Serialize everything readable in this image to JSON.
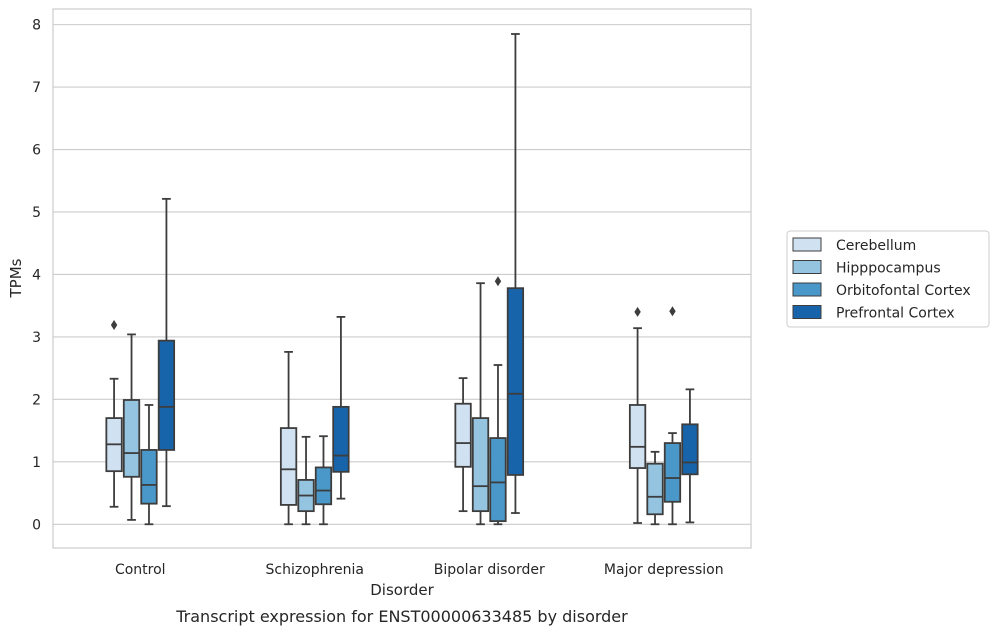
{
  "chart_data": {
    "type": "box",
    "xlabel": "Disorder",
    "ylabel": "TPMs",
    "caption": "Transcript expression for ENST00000633485 by disorder",
    "ylim": [
      -0.38,
      8.25
    ],
    "yticks": [
      0,
      1,
      2,
      3,
      4,
      5,
      6,
      7,
      8
    ],
    "grid": "horizontal",
    "legend_position": "right",
    "categories": [
      "Control",
      "Schizophrenia",
      "Bipolar disorder",
      "Major depression"
    ],
    "series": [
      {
        "name": "Cerebellum",
        "color": "#d0e1f2",
        "boxes": [
          {
            "whislo": 0.28,
            "q1": 0.85,
            "med": 1.28,
            "q3": 1.7,
            "whishi": 2.33,
            "fliers": [
              3.19
            ]
          },
          {
            "whislo": 0.0,
            "q1": 0.31,
            "med": 0.88,
            "q3": 1.54,
            "whishi": 2.76,
            "fliers": []
          },
          {
            "whislo": 0.21,
            "q1": 0.92,
            "med": 1.3,
            "q3": 1.93,
            "whishi": 2.34,
            "fliers": []
          },
          {
            "whislo": 0.02,
            "q1": 0.9,
            "med": 1.24,
            "q3": 1.91,
            "whishi": 3.14,
            "fliers": [
              3.4
            ]
          }
        ]
      },
      {
        "name": "Hipppocampus",
        "color": "#94c4df",
        "boxes": [
          {
            "whislo": 0.07,
            "q1": 0.76,
            "med": 1.14,
            "q3": 1.99,
            "whishi": 3.04,
            "fliers": []
          },
          {
            "whislo": 0.0,
            "q1": 0.21,
            "med": 0.46,
            "q3": 0.71,
            "whishi": 1.4,
            "fliers": []
          },
          {
            "whislo": 0.0,
            "q1": 0.21,
            "med": 0.61,
            "q3": 1.7,
            "whishi": 3.86,
            "fliers": []
          },
          {
            "whislo": 0.0,
            "q1": 0.16,
            "med": 0.44,
            "q3": 0.97,
            "whishi": 1.16,
            "fliers": []
          }
        ]
      },
      {
        "name": "Orbitofontal Cortex",
        "color": "#4a98c9",
        "boxes": [
          {
            "whislo": 0.0,
            "q1": 0.33,
            "med": 0.63,
            "q3": 1.19,
            "whishi": 1.91,
            "fliers": []
          },
          {
            "whislo": 0.0,
            "q1": 0.32,
            "med": 0.54,
            "q3": 0.91,
            "whishi": 1.41,
            "fliers": []
          },
          {
            "whislo": 0.0,
            "q1": 0.05,
            "med": 0.67,
            "q3": 1.38,
            "whishi": 2.55,
            "fliers": [
              3.89
            ]
          },
          {
            "whislo": 0.0,
            "q1": 0.36,
            "med": 0.74,
            "q3": 1.3,
            "whishi": 1.46,
            "fliers": [
              3.41
            ]
          }
        ]
      },
      {
        "name": "Prefrontal Cortex",
        "color": "#1764ab",
        "boxes": [
          {
            "whislo": 0.29,
            "q1": 1.19,
            "med": 1.88,
            "q3": 2.94,
            "whishi": 5.21,
            "fliers": []
          },
          {
            "whislo": 0.41,
            "q1": 0.84,
            "med": 1.1,
            "q3": 1.88,
            "whishi": 3.32,
            "fliers": []
          },
          {
            "whislo": 0.18,
            "q1": 0.79,
            "med": 2.09,
            "q3": 3.78,
            "whishi": 7.85,
            "fliers": []
          },
          {
            "whislo": 0.03,
            "q1": 0.8,
            "med": 0.99,
            "q3": 1.6,
            "whishi": 2.16,
            "fliers": []
          }
        ]
      }
    ]
  }
}
